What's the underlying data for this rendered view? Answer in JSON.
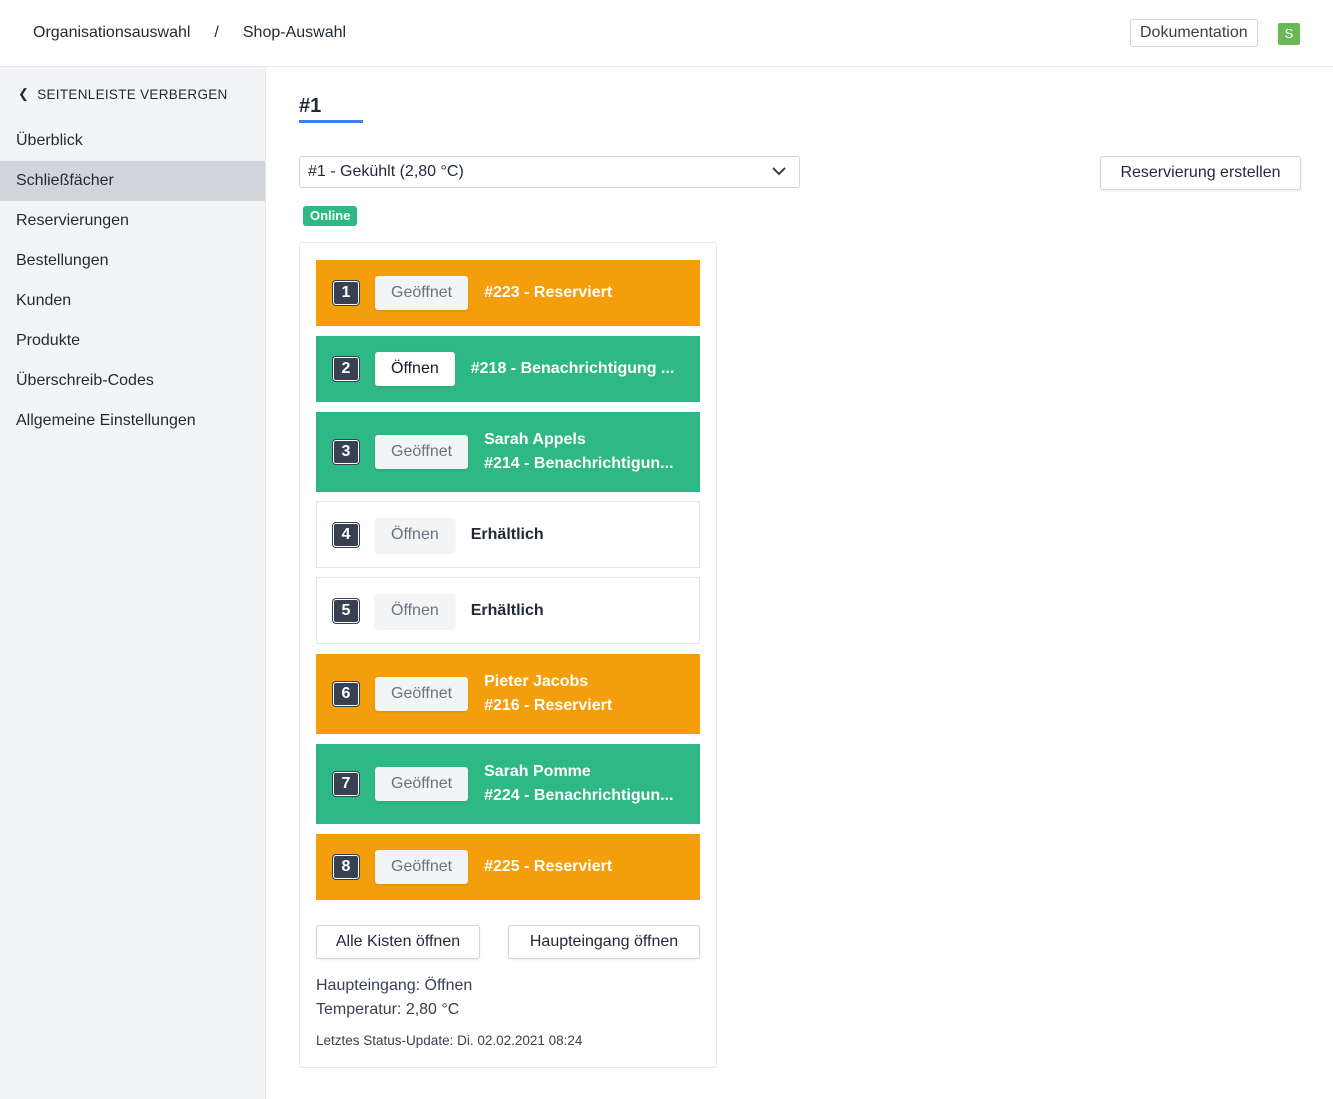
{
  "header": {
    "breadcrumb": [
      "Organisationsauswahl",
      "Shop-Auswahl"
    ],
    "separator": "/",
    "doc_label": "Dokumentation",
    "avatar": "S"
  },
  "sidebar": {
    "hide_label": "SEITENLEISTE VERBERGEN",
    "items": [
      {
        "label": "Überblick"
      },
      {
        "label": "Schließfächer",
        "active": true
      },
      {
        "label": "Reservierungen"
      },
      {
        "label": "Bestellungen"
      },
      {
        "label": "Kunden"
      },
      {
        "label": "Produkte"
      },
      {
        "label": "Überschreib-Codes"
      },
      {
        "label": "Allgemeine Einstellungen"
      }
    ]
  },
  "main": {
    "title": "#1",
    "select_value": "#1 - Gekühlt (2,80 °C)",
    "reserve_label": "Reservierung erstellen",
    "status": "Online",
    "lockers": [
      {
        "num": "1",
        "color": "orange",
        "button": "Geöffnet",
        "lines": [
          "#223 - Reserviert"
        ]
      },
      {
        "num": "2",
        "color": "green",
        "button": "Öffnen",
        "button_active": true,
        "lines": [
          "#218 - Benachrichtigung ..."
        ]
      },
      {
        "num": "3",
        "color": "green",
        "button": "Geöffnet",
        "lines": [
          "Sarah Appels",
          "#214 - Benachrichtigun..."
        ]
      },
      {
        "num": "4",
        "color": "white",
        "button": "Öffnen",
        "lines": [
          "Erhältlich"
        ]
      },
      {
        "num": "5",
        "color": "white",
        "button": "Öffnen",
        "lines": [
          "Erhältlich"
        ]
      },
      {
        "num": "6",
        "color": "orange",
        "button": "Geöffnet",
        "lines": [
          "Pieter Jacobs",
          "#216 - Reserviert"
        ]
      },
      {
        "num": "7",
        "color": "green",
        "button": "Geöffnet",
        "lines": [
          "Sarah Pomme",
          "#224 - Benachrichtigun..."
        ]
      },
      {
        "num": "8",
        "color": "orange",
        "button": "Geöffnet",
        "lines": [
          "#225 - Reserviert"
        ]
      }
    ],
    "open_all_label": "Alle Kisten öffnen",
    "open_main_label": "Haupteingang öffnen",
    "main_entrance": "Haupteingang: Öffnen",
    "temperature": "Temperatur: 2,80 °C",
    "last_update": "Letztes Status-Update: Di. 02.02.2021 08:24"
  },
  "colors": {
    "orange": "#f49e0c",
    "green": "#2eb886",
    "accent": "#3b82f6"
  }
}
